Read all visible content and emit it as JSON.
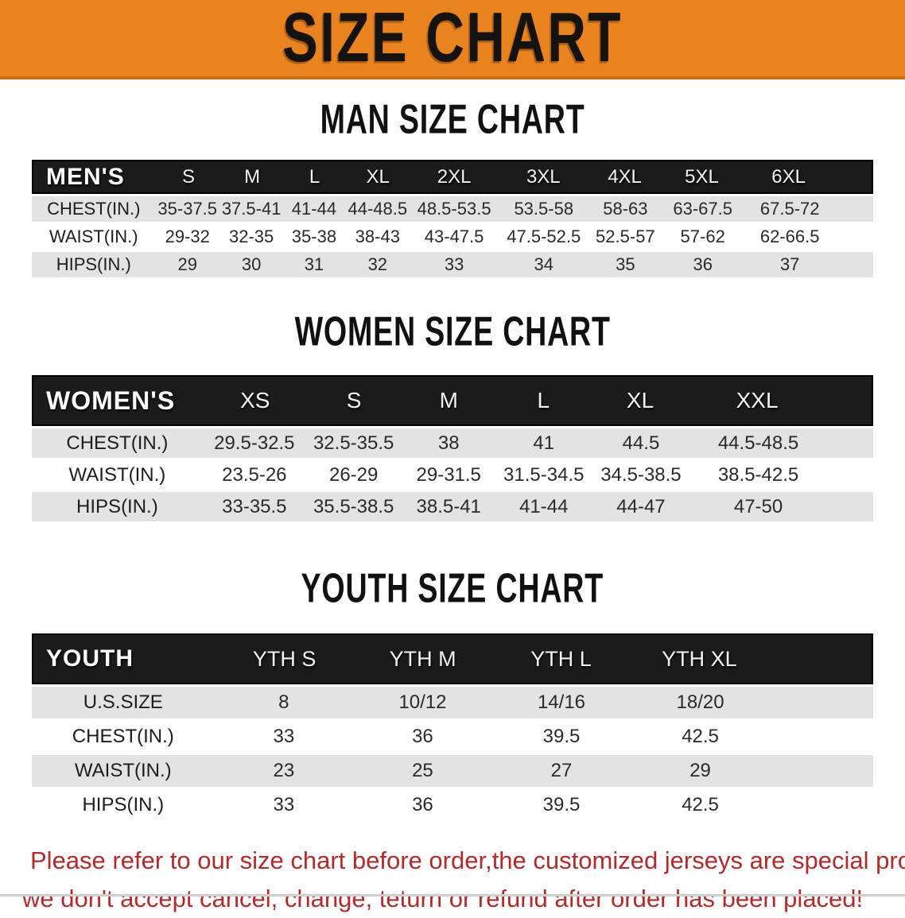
{
  "banner": {
    "title": "SIZE CHART"
  },
  "colors": {
    "banner_orange": "#E8831F",
    "banner_edge": "#c96f15",
    "band_black": "#1b1b1b",
    "row_gray": "#e3e3e4",
    "footer_red": "#b22a2b"
  },
  "sections": {
    "men": {
      "heading": "MAN SIZE CHART",
      "table": {
        "header_label": "MEN'S",
        "columns": [
          "S",
          "M",
          "L",
          "XL",
          "2XL",
          "3XL",
          "4XL",
          "5XL",
          "6XL"
        ],
        "rows": [
          {
            "label": "CHEST(IN.)",
            "values": [
              "35-37.5",
              "37.5-41",
              "41-44",
              "44-48.5",
              "48.5-53.5",
              "53.5-58",
              "58-63",
              "63-67.5",
              "67.5-72"
            ]
          },
          {
            "label": "WAIST(IN.)",
            "values": [
              "29-32",
              "32-35",
              "35-38",
              "38-43",
              "43-47.5",
              "47.5-52.5",
              "52.5-57",
              "57-62",
              "62-66.5"
            ]
          },
          {
            "label": "HIPS(IN.)",
            "values": [
              "29",
              "30",
              "31",
              "32",
              "33",
              "34",
              "35",
              "36",
              "37"
            ]
          }
        ]
      }
    },
    "women": {
      "heading": "WOMEN SIZE CHART",
      "table": {
        "header_label": "WOMEN'S",
        "columns": [
          "XS",
          "S",
          "M",
          "L",
          "XL",
          "XXL"
        ],
        "rows": [
          {
            "label": "CHEST(IN.)",
            "values": [
              "29.5-32.5",
              "32.5-35.5",
              "38",
              "41",
              "44.5",
              "44.5-48.5"
            ]
          },
          {
            "label": "WAIST(IN.)",
            "values": [
              "23.5-26",
              "26-29",
              "29-31.5",
              "31.5-34.5",
              "34.5-38.5",
              "38.5-42.5"
            ]
          },
          {
            "label": "HIPS(IN.)",
            "values": [
              "33-35.5",
              "35.5-38.5",
              "38.5-41",
              "41-44",
              "44-47",
              "47-50"
            ]
          }
        ]
      }
    },
    "youth": {
      "heading": "YOUTH SIZE CHART",
      "table": {
        "header_label": "YOUTH",
        "columns": [
          "YTH S",
          "YTH M",
          "YTH L",
          "YTH XL"
        ],
        "rows": [
          {
            "label": "U.S.SIZE",
            "values": [
              "8",
              "10/12",
              "14/16",
              "18/20"
            ]
          },
          {
            "label": "CHEST(IN.)",
            "values": [
              "33",
              "36",
              "39.5",
              "42.5"
            ]
          },
          {
            "label": "WAIST(IN.)",
            "values": [
              "23",
              "25",
              "27",
              "29"
            ]
          },
          {
            "label": "HIPS(IN.)",
            "values": [
              "33",
              "36",
              "39.5",
              "42.5"
            ]
          }
        ]
      }
    }
  },
  "footer": {
    "line1": "Please refer to our size chart before order,the customized jerseys are special products,",
    "line2": "we don't accept cancel, change, teturn or refund after order has been placed!"
  }
}
